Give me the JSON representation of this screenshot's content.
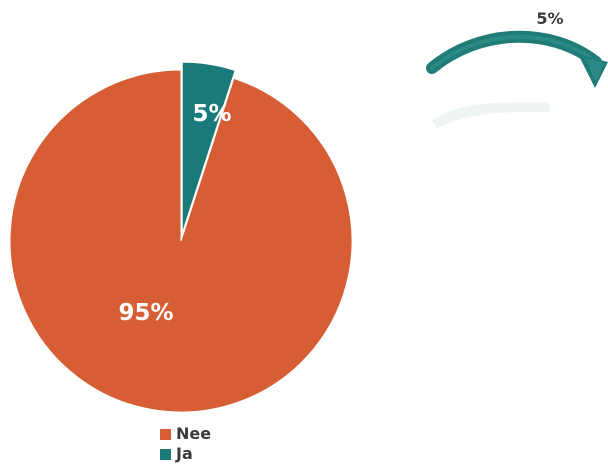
{
  "chart_data": {
    "type": "pie",
    "slices": [
      {
        "name": "Nee",
        "value": 95,
        "label": "95%",
        "color": "#d65d34"
      },
      {
        "name": "Ja",
        "value": 5,
        "label": "5%",
        "color": "#1a7a7a"
      }
    ],
    "exploded_slice": "Ja",
    "callout": {
      "label": "5%",
      "arrow_color": "#1f7b76"
    },
    "legend": {
      "position": "bottom",
      "items": [
        {
          "label": "Nee",
          "color": "#d65d34"
        },
        {
          "label": "Ja",
          "color": "#1a7a7a"
        }
      ]
    }
  }
}
